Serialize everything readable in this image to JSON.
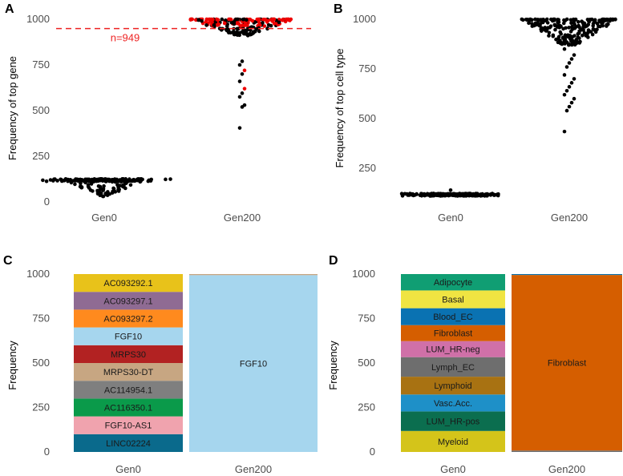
{
  "figure": {
    "panel_letters": [
      "A",
      "B",
      "C",
      "D"
    ]
  },
  "chart_data": [
    {
      "panel": "A",
      "type": "scatter",
      "subtype": "beeswarm",
      "xlabel": "",
      "ylabel": "Frequency of top gene",
      "categories": [
        "Gen0",
        "Gen200"
      ],
      "ylim": [
        0,
        1050
      ],
      "yticks": [
        0,
        250,
        500,
        750,
        1000
      ],
      "series": [
        {
          "name": "Gen0",
          "center": 120,
          "min": 30,
          "max": 135,
          "n_points": 230,
          "color": "#000000"
        },
        {
          "name": "Gen200",
          "center": 995,
          "min": 405,
          "max": 1000,
          "n_points": 230,
          "color": "#000000",
          "highlight_color": "#ee0000",
          "outliers": [
            405,
            520,
            530,
            575,
            595,
            620,
            660,
            700,
            720,
            750,
            770
          ]
        }
      ],
      "reference_line": {
        "y": 949,
        "label": "n=949",
        "color": "#ee2222",
        "style": "dashed"
      }
    },
    {
      "panel": "B",
      "type": "scatter",
      "subtype": "beeswarm",
      "xlabel": "",
      "ylabel": "Frequency of top cell type",
      "categories": [
        "Gen0",
        "Gen200"
      ],
      "ylim": [
        80,
        1050
      ],
      "yticks": [
        250,
        500,
        750,
        1000
      ],
      "series": [
        {
          "name": "Gen0",
          "center": 117,
          "min": 108,
          "max": 140,
          "n_points": 220,
          "color": "#000000"
        },
        {
          "name": "Gen200",
          "center": 990,
          "min": 435,
          "max": 1000,
          "n_points": 230,
          "color": "#000000",
          "outliers": [
            435,
            540,
            560,
            580,
            600,
            620,
            640,
            660,
            680,
            700,
            720,
            760,
            780,
            800,
            820,
            850
          ]
        }
      ]
    },
    {
      "panel": "C",
      "type": "bar",
      "subtype": "stacked",
      "xlabel": "",
      "ylabel": "Frequency",
      "categories": [
        "Gen0",
        "Gen200"
      ],
      "ylim": [
        0,
        1050
      ],
      "yticks": [
        0,
        250,
        500,
        750,
        1000
      ],
      "stacks": [
        {
          "category": "Gen0",
          "segments": [
            {
              "label": "LINC02224",
              "value": 100,
              "color": "#0a6a8c"
            },
            {
              "label": "FGF10-AS1",
              "value": 100,
              "color": "#f0a3ae"
            },
            {
              "label": "AC116350.1",
              "value": 100,
              "color": "#0a9a4a"
            },
            {
              "label": "AC114954.1",
              "value": 100,
              "color": "#7f7f7f"
            },
            {
              "label": "MRPS30-DT",
              "value": 100,
              "color": "#c7a682"
            },
            {
              "label": "MRPS30",
              "value": 100,
              "color": "#b22222"
            },
            {
              "label": "FGF10",
              "value": 100,
              "color": "#a6d6ee"
            },
            {
              "label": "AC093297.2",
              "value": 100,
              "color": "#ff8a1e"
            },
            {
              "label": "AC093297.1",
              "value": 100,
              "color": "#8f6b93"
            },
            {
              "label": "AC093292.1",
              "value": 100,
              "color": "#e8c21a"
            }
          ]
        },
        {
          "category": "Gen200",
          "segments": [
            {
              "label": "FGF10",
              "value": 994,
              "color": "#a6d6ee"
            },
            {
              "label": "",
              "value": 6,
              "color": "#c7a682"
            }
          ]
        }
      ]
    },
    {
      "panel": "D",
      "type": "bar",
      "subtype": "stacked",
      "xlabel": "",
      "ylabel": "Frequency",
      "categories": [
        "Gen0",
        "Gen200"
      ],
      "ylim": [
        0,
        1050
      ],
      "yticks": [
        0,
        250,
        500,
        750,
        1000
      ],
      "stacks": [
        {
          "category": "Gen0",
          "segments": [
            {
              "label": "Myeloid",
              "value": 118,
              "color": "#d4c41a"
            },
            {
              "label": "LUM_HR-pos",
              "value": 110,
              "color": "#0b6e4f"
            },
            {
              "label": "Vasc.Acc.",
              "value": 95,
              "color": "#1e90c8"
            },
            {
              "label": "Lymphoid",
              "value": 100,
              "color": "#a87212"
            },
            {
              "label": "Lymph_EC",
              "value": 110,
              "color": "#6e6e6e"
            },
            {
              "label": "LUM_HR-neg",
              "value": 90,
              "color": "#d070a8"
            },
            {
              "label": "Fibroblast",
              "value": 90,
              "color": "#d55e00"
            },
            {
              "label": "Blood_EC",
              "value": 95,
              "color": "#0a72b2"
            },
            {
              "label": "Basal",
              "value": 100,
              "color": "#f0e442"
            },
            {
              "label": "Adipocyte",
              "value": 92,
              "color": "#109e73"
            }
          ]
        },
        {
          "category": "Gen200",
          "segments": [
            {
              "label": "",
              "value": 8,
              "color": "#6e6e6e"
            },
            {
              "label": "Fibroblast",
              "value": 987,
              "color": "#d55e00"
            },
            {
              "label": "",
              "value": 5,
              "color": "#0a72b2"
            }
          ]
        }
      ]
    }
  ]
}
